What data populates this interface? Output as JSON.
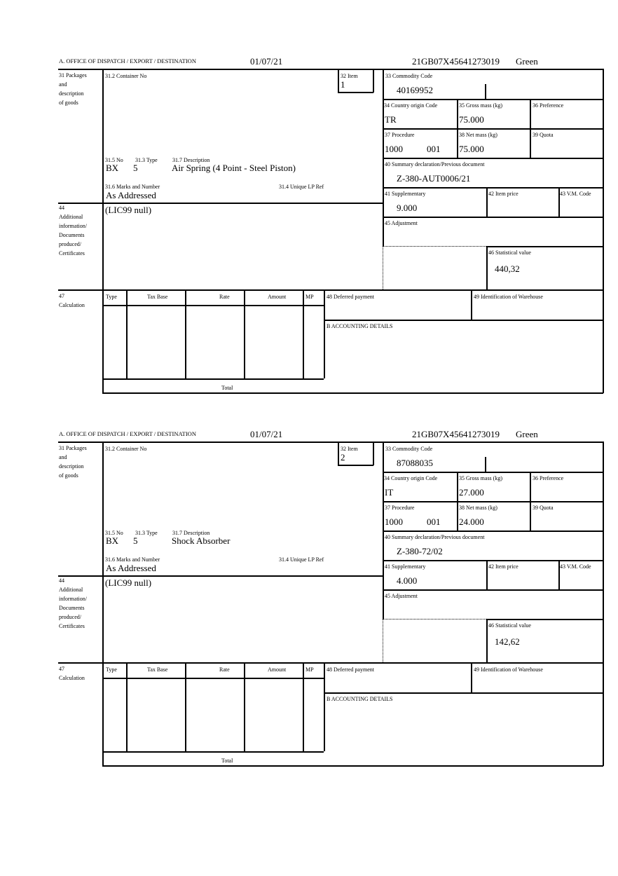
{
  "labels": {
    "office": "A.  OFFICE OF DISPATCH / EXPORT / DESTINATION",
    "packages": [
      "31 Packages",
      "and",
      "description",
      "of goods"
    ],
    "container_no": "31.2 Container No",
    "item": "32 Item",
    "commodity": "33 Commodity Code",
    "country_origin": "34 Country origin Code",
    "gross_mass": "35 Gross mass (kg)",
    "preference": "36 Preference",
    "procedure": "37 Procedure",
    "net_mass": "38 Net mass (kg)",
    "quota": "39 Quota",
    "summary_decl": "40 Summary declaration/Previous document",
    "supplementary": "41 Supplementary",
    "item_price": "42 Item price",
    "vm_code": "43 V.M. Code",
    "adjustment": "45 Adjustment",
    "stat_value": "46 Statistical value",
    "no": "31.5 No",
    "type": "31.3 Type",
    "description": "31.7 Description",
    "marks": "31.6 Marks and Number",
    "unique_lp": "31.4 Unique LP Ref",
    "additional": [
      "44",
      "Additional",
      "information/",
      "Documents",
      "produced/",
      "Certificates"
    ],
    "calculation": [
      "47",
      "Calculation"
    ],
    "calc_cols": [
      "Type",
      "Tax Base",
      "Rate",
      "Amount",
      "MP"
    ],
    "total": "Total",
    "deferred": "48 Deferred payment",
    "warehouse": "49 Identification of Warehouse",
    "accounting": "B ACCOUNTING DETAILS"
  },
  "forms": [
    {
      "date": "01/07/21",
      "reference": "21GB07X45641273019",
      "route": "Green",
      "item": "1",
      "commodity": "40169952",
      "country_origin": "TR",
      "gross_mass": "75.000",
      "procedure": "1000",
      "procedure_add": "001",
      "net_mass": "75.000",
      "summary_decl": "Z-380-AUT0006/21",
      "supplementary": "9.000",
      "stat_value": "440,32",
      "no": "BX",
      "type": "5",
      "description": "Air Spring (4 Point - Steel Piston)",
      "marks": "As Addressed",
      "additional": "(LIC99 null)"
    },
    {
      "date": "01/07/21",
      "reference": "21GB07X45641273019",
      "route": "Green",
      "item": "2",
      "commodity": "87088035",
      "country_origin": "IT",
      "gross_mass": "27.000",
      "procedure": "1000",
      "procedure_add": "001",
      "net_mass": "24.000",
      "summary_decl": "Z-380-72/02",
      "supplementary": "4.000",
      "stat_value": "142,62",
      "no": "BX",
      "type": "5",
      "description": "Shock Absorber",
      "marks": "As Addressed",
      "additional": "(LIC99 null)"
    }
  ]
}
